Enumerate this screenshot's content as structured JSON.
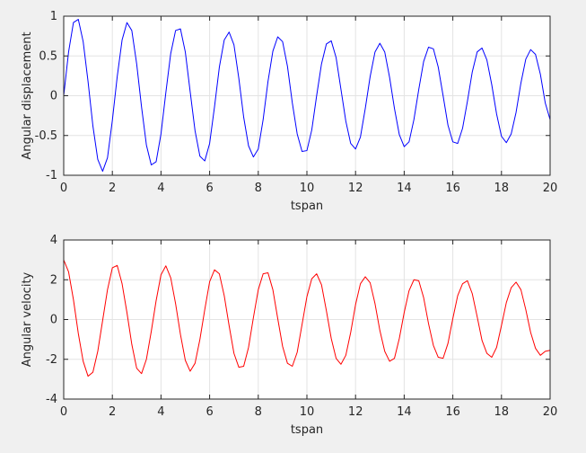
{
  "colors": {
    "figure_background": "#f0f0f0",
    "axes_background": "#ffffff",
    "grid": "#e3e3e3",
    "axis": "#262626",
    "series_1": "#0000ff",
    "series_2": "#ff0000"
  },
  "chart_data": [
    {
      "type": "line",
      "title": "",
      "xlabel": "tspan",
      "ylabel": "Angular displacement",
      "xlim": [
        0,
        20
      ],
      "ylim": [
        -1,
        1
      ],
      "xticks": [
        0,
        2,
        4,
        6,
        8,
        10,
        12,
        14,
        16,
        18,
        20
      ],
      "yticks": [
        -1,
        -0.5,
        0,
        0.5,
        1
      ],
      "xtick_labels": [
        "0",
        "2",
        "4",
        "6",
        "8",
        "10",
        "12",
        "14",
        "16",
        "18",
        "20"
      ],
      "ytick_labels": [
        "-1",
        "-0.5",
        "0",
        "0.5",
        "1"
      ],
      "grid": true,
      "legend": "none",
      "color": "#0000ff",
      "series": [
        {
          "x": [
            0,
            0.2,
            0.4,
            0.6,
            0.8,
            1.0,
            1.2,
            1.4,
            1.6,
            1.8,
            2.0,
            2.2,
            2.4,
            2.6,
            2.8,
            3.0,
            3.2,
            3.4,
            3.6,
            3.8,
            4.0,
            4.2,
            4.4,
            4.6,
            4.8,
            5.0,
            5.2,
            5.4,
            5.6,
            5.8,
            6.0,
            6.2,
            6.4,
            6.6,
            6.8,
            7.0,
            7.2,
            7.4,
            7.6,
            7.8,
            8.0,
            8.2,
            8.4,
            8.6,
            8.8,
            9.0,
            9.2,
            9.4,
            9.6,
            9.8,
            10.0,
            10.2,
            10.4,
            10.6,
            10.8,
            11.0,
            11.2,
            11.4,
            11.6,
            11.8,
            12.0,
            12.2,
            12.4,
            12.6,
            12.8,
            13.0,
            13.2,
            13.4,
            13.6,
            13.8,
            14.0,
            14.2,
            14.4,
            14.6,
            14.8,
            15.0,
            15.2,
            15.4,
            15.6,
            15.8,
            16.0,
            16.2,
            16.4,
            16.6,
            16.8,
            17.0,
            17.2,
            17.4,
            17.6,
            17.8,
            18.0,
            18.2,
            18.4,
            18.6,
            18.8,
            19.0,
            19.2,
            19.4,
            19.6,
            19.8,
            20.0
          ],
          "y": [
            0.0,
            0.55,
            0.92,
            0.96,
            0.68,
            0.18,
            -0.38,
            -0.8,
            -0.95,
            -0.78,
            -0.31,
            0.24,
            0.7,
            0.92,
            0.82,
            0.4,
            -0.14,
            -0.62,
            -0.87,
            -0.83,
            -0.48,
            0.04,
            0.53,
            0.82,
            0.84,
            0.55,
            0.05,
            -0.44,
            -0.76,
            -0.82,
            -0.6,
            -0.14,
            0.36,
            0.7,
            0.8,
            0.64,
            0.22,
            -0.27,
            -0.63,
            -0.77,
            -0.67,
            -0.3,
            0.18,
            0.56,
            0.74,
            0.68,
            0.37,
            -0.09,
            -0.48,
            -0.7,
            -0.69,
            -0.43,
            0.0,
            0.4,
            0.65,
            0.69,
            0.48,
            0.08,
            -0.32,
            -0.6,
            -0.67,
            -0.52,
            -0.16,
            0.24,
            0.55,
            0.66,
            0.55,
            0.23,
            -0.16,
            -0.49,
            -0.64,
            -0.58,
            -0.3,
            0.08,
            0.43,
            0.61,
            0.59,
            0.36,
            0.0,
            -0.37,
            -0.58,
            -0.6,
            -0.41,
            -0.07,
            0.3,
            0.55,
            0.6,
            0.45,
            0.14,
            -0.23,
            -0.51,
            -0.59,
            -0.48,
            -0.21,
            0.16,
            0.46,
            0.58,
            0.52,
            0.27,
            -0.09,
            -0.3
          ]
        }
      ]
    },
    {
      "type": "line",
      "title": "",
      "xlabel": "tspan",
      "ylabel": "Angular velocity",
      "xlim": [
        0,
        20
      ],
      "ylim": [
        -4,
        4
      ],
      "xticks": [
        0,
        2,
        4,
        6,
        8,
        10,
        12,
        14,
        16,
        18,
        20
      ],
      "yticks": [
        -4,
        -2,
        0,
        2,
        4
      ],
      "xtick_labels": [
        "0",
        "2",
        "4",
        "6",
        "8",
        "10",
        "12",
        "14",
        "16",
        "18",
        "20"
      ],
      "ytick_labels": [
        "-4",
        "-2",
        "0",
        "2",
        "4"
      ],
      "grid": true,
      "legend": "none",
      "color": "#ff0000",
      "series": [
        {
          "x": [
            0,
            0.2,
            0.4,
            0.6,
            0.8,
            1.0,
            1.2,
            1.4,
            1.6,
            1.8,
            2.0,
            2.2,
            2.4,
            2.6,
            2.8,
            3.0,
            3.2,
            3.4,
            3.6,
            3.8,
            4.0,
            4.2,
            4.4,
            4.6,
            4.8,
            5.0,
            5.2,
            5.4,
            5.6,
            5.8,
            6.0,
            6.2,
            6.4,
            6.6,
            6.8,
            7.0,
            7.2,
            7.4,
            7.6,
            7.8,
            8.0,
            8.2,
            8.4,
            8.6,
            8.8,
            9.0,
            9.2,
            9.4,
            9.6,
            9.8,
            10.0,
            10.2,
            10.4,
            10.6,
            10.8,
            11.0,
            11.2,
            11.4,
            11.6,
            11.8,
            12.0,
            12.2,
            12.4,
            12.6,
            12.8,
            13.0,
            13.2,
            13.4,
            13.6,
            13.8,
            14.0,
            14.2,
            14.4,
            14.6,
            14.8,
            15.0,
            15.2,
            15.4,
            15.6,
            15.8,
            16.0,
            16.2,
            16.4,
            16.6,
            16.8,
            17.0,
            17.2,
            17.4,
            17.6,
            17.8,
            18.0,
            18.2,
            18.4,
            18.6,
            18.8,
            19.0,
            19.2,
            19.4,
            19.6,
            19.8,
            20.0
          ],
          "y": [
            3.0,
            2.4,
            1.0,
            -0.7,
            -2.1,
            -2.85,
            -2.65,
            -1.6,
            -0.05,
            1.5,
            2.6,
            2.72,
            1.8,
            0.35,
            -1.25,
            -2.45,
            -2.72,
            -2.0,
            -0.6,
            0.95,
            2.25,
            2.7,
            2.1,
            0.8,
            -0.75,
            -2.05,
            -2.6,
            -2.2,
            -1.0,
            0.5,
            1.9,
            2.5,
            2.3,
            1.2,
            -0.3,
            -1.7,
            -2.4,
            -2.35,
            -1.4,
            0.1,
            1.5,
            2.3,
            2.35,
            1.5,
            0.05,
            -1.35,
            -2.2,
            -2.35,
            -1.65,
            -0.25,
            1.15,
            2.05,
            2.3,
            1.75,
            0.45,
            -0.95,
            -1.95,
            -2.25,
            -1.8,
            -0.65,
            0.75,
            1.8,
            2.15,
            1.85,
            0.8,
            -0.55,
            -1.6,
            -2.1,
            -1.95,
            -0.95,
            0.35,
            1.45,
            2.0,
            1.95,
            1.1,
            -0.2,
            -1.3,
            -1.9,
            -1.95,
            -1.2,
            0.05,
            1.2,
            1.8,
            1.95,
            1.3,
            0.15,
            -1.05,
            -1.7,
            -1.9,
            -1.4,
            -0.3,
            0.85,
            1.6,
            1.88,
            1.5,
            0.5,
            -0.65,
            -1.45,
            -1.8,
            -1.6,
            -1.55
          ]
        }
      ]
    }
  ]
}
